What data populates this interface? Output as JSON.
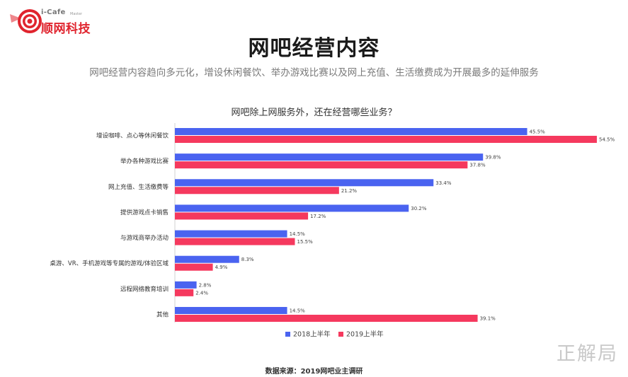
{
  "logo": {
    "en": "i-Cafe",
    "en_small": "Master",
    "cn": "顺网科技"
  },
  "title": "网吧经营内容",
  "subtitle": "网吧经营内容趋向多元化，增设休闲餐饮、举办游戏比赛以及网上充值、生活缴费成为开展最多的延伸服务",
  "question": "网吧除上网服务外，还在经营哪些业务？",
  "colors": {
    "series_2018": "#4a63f0",
    "series_2019": "#f5395e",
    "value_label": "#444444",
    "category_label": "#333333"
  },
  "chart_data": {
    "type": "bar",
    "orientation": "horizontal",
    "categories": [
      "增设咖啡、点心等休闲餐饮",
      "举办各种游戏比赛",
      "网上充值、生活缴费等",
      "提供游戏点卡销售",
      "与游戏商举办活动",
      "桌游、VR、手机游戏等专属的游戏/体验区域",
      "远程网络教育培训",
      "其他"
    ],
    "series": [
      {
        "name": "2018上半年",
        "values": [
          45.5,
          39.8,
          33.4,
          30.2,
          14.5,
          8.3,
          2.8,
          14.5
        ]
      },
      {
        "name": "2019上半年",
        "values": [
          54.5,
          37.8,
          21.2,
          17.2,
          15.5,
          4.9,
          2.4,
          39.1
        ]
      }
    ],
    "value_suffix": "%",
    "xlim": [
      0,
      54.5
    ],
    "grid": false,
    "legend_position": "bottom"
  },
  "source": "数据来源：2019网吧业主调研",
  "watermark": "正解局"
}
